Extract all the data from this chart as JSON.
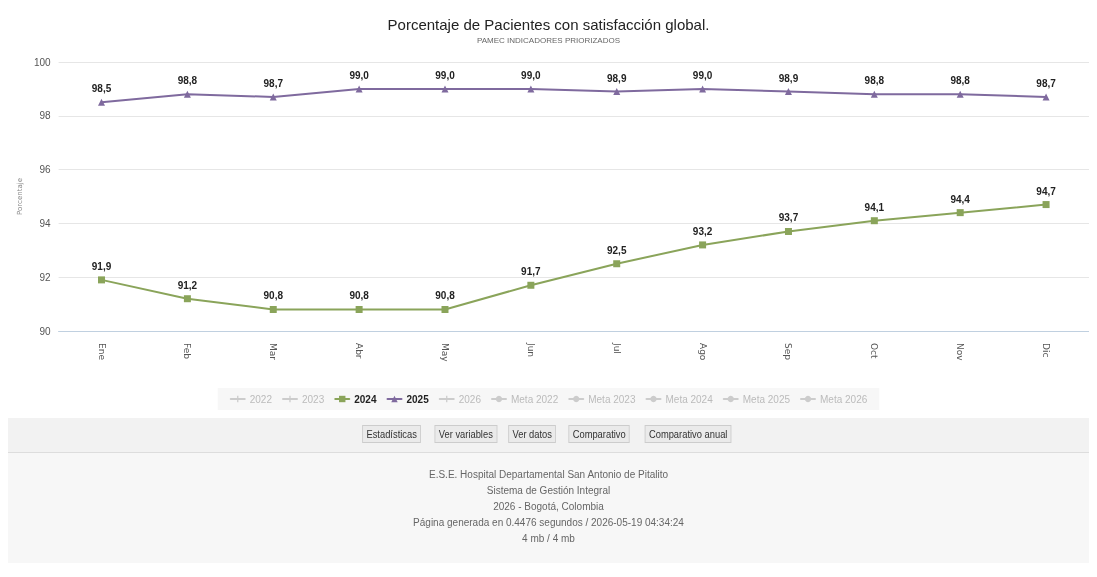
{
  "chart_data": [
    {
      "type": "line",
      "title": "Porcentaje de Pacientes con satisfacción global.",
      "subtitle": "PAMEC INDICADORES PRIORIZADOS",
      "ylabel": "Porcentaje",
      "categories": [
        "Ene",
        "Feb",
        "Mar",
        "Abr",
        "May",
        "Jun",
        "Jul",
        "Ago",
        "Sep",
        "Oct",
        "Nov",
        "Dic"
      ],
      "ylim": [
        90,
        100
      ],
      "yticks": [
        90,
        92,
        94,
        96,
        98,
        100
      ],
      "grid": "y",
      "legend": "bottom",
      "series": [
        {
          "name": "2022",
          "color": "#cccccc",
          "marker": "cross",
          "values": [
            null,
            null,
            null,
            null,
            null,
            null,
            null,
            null,
            null,
            null,
            null,
            null
          ]
        },
        {
          "name": "2023",
          "color": "#cccccc",
          "marker": "cross",
          "values": [
            null,
            null,
            null,
            null,
            null,
            null,
            null,
            null,
            null,
            null,
            null,
            null
          ]
        },
        {
          "name": "2024",
          "color": "#8aa45a",
          "marker": "square",
          "values": [
            91.9,
            91.2,
            90.8,
            90.8,
            90.8,
            91.7,
            92.5,
            93.2,
            93.7,
            94.1,
            94.4,
            94.7
          ],
          "value_labels": [
            "91,9",
            "91,2",
            "90,8",
            "90,8",
            "90,8",
            "91,7",
            "92,5",
            "93,2",
            "93,7",
            "94,1",
            "94,4",
            "94,7"
          ]
        },
        {
          "name": "2025",
          "color": "#7f6a9e",
          "marker": "triangle",
          "values": [
            98.5,
            98.8,
            98.7,
            99.0,
            99.0,
            99.0,
            98.9,
            99.0,
            98.9,
            98.8,
            98.8,
            98.7
          ],
          "value_labels": [
            "98,5",
            "98,8",
            "98,7",
            "99,0",
            "99,0",
            "99,0",
            "98,9",
            "99,0",
            "98,9",
            "98,8",
            "98,8",
            "98,7"
          ]
        },
        {
          "name": "2026",
          "color": "#cccccc",
          "marker": "cross",
          "values": [
            null,
            null,
            null,
            null,
            null,
            null,
            null,
            null,
            null,
            null,
            null,
            null
          ]
        },
        {
          "name": "Meta 2022",
          "color": "#cccccc",
          "marker": "circle",
          "values": [
            null,
            null,
            null,
            null,
            null,
            null,
            null,
            null,
            null,
            null,
            null,
            null
          ]
        },
        {
          "name": "Meta 2023",
          "color": "#cccccc",
          "marker": "circle",
          "values": [
            null,
            null,
            null,
            null,
            null,
            null,
            null,
            null,
            null,
            null,
            null,
            null
          ]
        },
        {
          "name": "Meta 2024",
          "color": "#cccccc",
          "marker": "circle",
          "values": [
            null,
            null,
            null,
            null,
            null,
            null,
            null,
            null,
            null,
            null,
            null,
            null
          ]
        },
        {
          "name": "Meta 2025",
          "color": "#cccccc",
          "marker": "circle",
          "values": [
            null,
            null,
            null,
            null,
            null,
            null,
            null,
            null,
            null,
            null,
            null,
            null
          ]
        },
        {
          "name": "Meta 2026",
          "color": "#cccccc",
          "marker": "circle",
          "values": [
            null,
            null,
            null,
            null,
            null,
            null,
            null,
            null,
            null,
            null,
            null,
            null
          ]
        }
      ]
    },
    {
      "type": "other",
      "annotations": [
        "Estadísticas",
        "Ver variables",
        "Ver datos",
        "Comparativo",
        "Comparativo anual"
      ]
    },
    {
      "type": "other",
      "annotations": [
        "E.S.E. Hospital Departamental San Antonio de Pitalito",
        "Sistema de Gestión Integral",
        "2026 - Bogotá, Colombia",
        "Página generada en 0.4476 segundos / 2026-05-19 04:34:24",
        "4 mb / 4 mb"
      ]
    }
  ]
}
